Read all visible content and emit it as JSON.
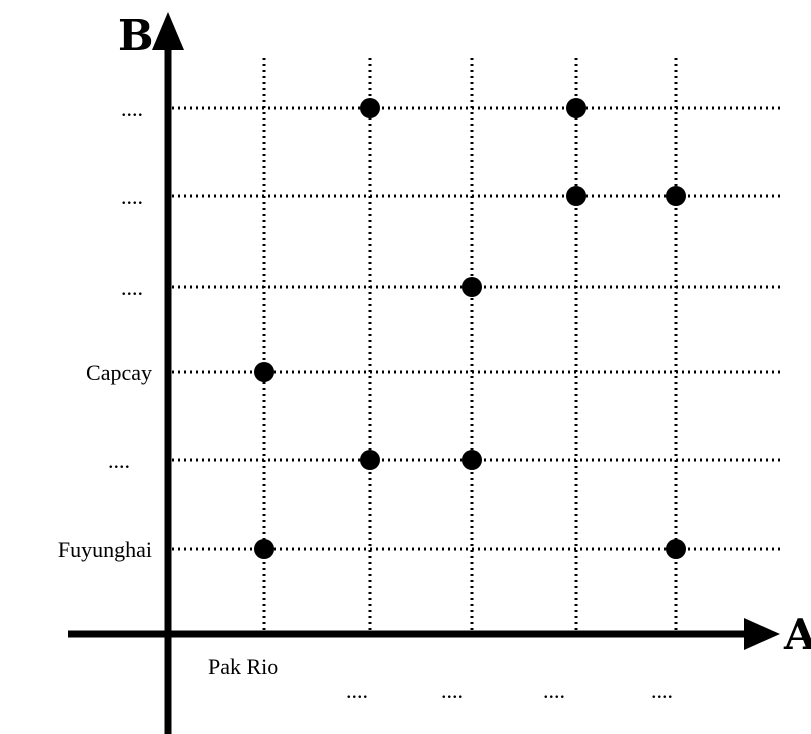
{
  "chart_data": {
    "type": "scatter",
    "x_axis_title": "A",
    "y_axis_title": "B",
    "x_tick_labels": [
      "Pak Rio",
      "....",
      "....",
      "....",
      "...."
    ],
    "y_tick_labels": [
      "Fuyunghai",
      "....",
      "Capcay",
      "....",
      "....",
      "...."
    ],
    "grid": true,
    "points": [
      {
        "x": 1,
        "y": 1
      },
      {
        "x": 5,
        "y": 1
      },
      {
        "x": 2,
        "y": 2
      },
      {
        "x": 3,
        "y": 2
      },
      {
        "x": 1,
        "y": 3
      },
      {
        "x": 3,
        "y": 4
      },
      {
        "x": 4,
        "y": 5
      },
      {
        "x": 5,
        "y": 5
      },
      {
        "x": 2,
        "y": 6
      },
      {
        "x": 4,
        "y": 6
      }
    ]
  }
}
